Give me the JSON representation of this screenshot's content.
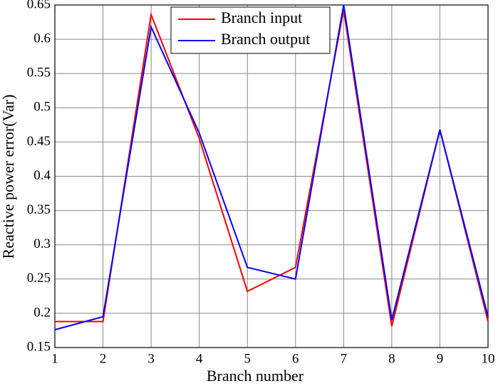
{
  "chart_data": {
    "type": "line",
    "xlabel": "Branch number",
    "ylabel": "Reactive power error(Var)",
    "x": [
      1,
      2,
      3,
      4,
      5,
      6,
      7,
      8,
      9,
      10
    ],
    "series": [
      {
        "name": "Branch input",
        "color": "#ff0000",
        "values": [
          0.188,
          0.188,
          0.636,
          0.455,
          0.232,
          0.267,
          0.643,
          0.181,
          0.468,
          0.188
        ]
      },
      {
        "name": "Branch output",
        "color": "#0000ff",
        "values": [
          0.176,
          0.195,
          0.618,
          0.463,
          0.267,
          0.25,
          0.65,
          0.19,
          0.468,
          0.195
        ]
      }
    ],
    "xlim": [
      1,
      10
    ],
    "xticks": [
      1,
      2,
      3,
      4,
      5,
      6,
      7,
      8,
      9,
      10
    ],
    "ylim": [
      0.15,
      0.65
    ],
    "yticks": [
      0.15,
      0.2,
      0.25,
      0.3,
      0.35,
      0.4,
      0.45,
      0.5,
      0.55,
      0.6,
      0.65
    ],
    "grid": true,
    "legend": "top"
  }
}
